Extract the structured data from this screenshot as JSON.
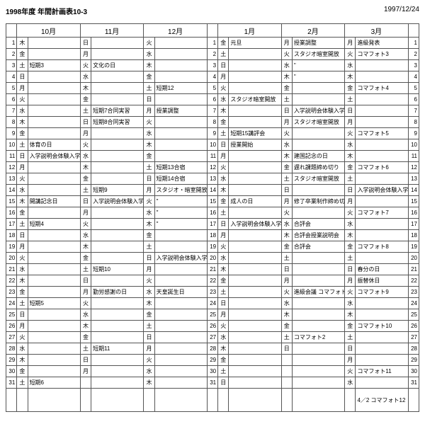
{
  "header": {
    "title": "1998年度 年間計画表10-3",
    "print_date": "1997/12/24"
  },
  "months": [
    "10月",
    "11月",
    "12月",
    "1月",
    "2月",
    "3月"
  ],
  "days": {
    "10": [
      "木",
      "金",
      "土",
      "日",
      "月",
      "火",
      "水",
      "木",
      "金",
      "土",
      "日",
      "月",
      "火",
      "水",
      "木",
      "金",
      "土",
      "日",
      "月",
      "火",
      "水",
      "木",
      "金",
      "土",
      "日",
      "月",
      "火",
      "水",
      "木",
      "金",
      "土"
    ],
    "11": [
      "日",
      "月",
      "火",
      "水",
      "木",
      "金",
      "土",
      "日",
      "月",
      "火",
      "水",
      "木",
      "金",
      "土",
      "日",
      "月",
      "火",
      "水",
      "木",
      "金",
      "土",
      "日",
      "月",
      "火",
      "水",
      "木",
      "金",
      "土",
      "日",
      "月",
      ""
    ],
    "12": [
      "火",
      "水",
      "木",
      "金",
      "土",
      "日",
      "月",
      "火",
      "水",
      "木",
      "金",
      "土",
      "日",
      "月",
      "火",
      "水",
      "木",
      "金",
      "土",
      "日",
      "月",
      "火",
      "水",
      "木",
      "金",
      "土",
      "日",
      "月",
      "火",
      "水",
      "木"
    ],
    "1": [
      "金",
      "土",
      "日",
      "月",
      "火",
      "水",
      "木",
      "金",
      "土",
      "日",
      "月",
      "火",
      "水",
      "木",
      "金",
      "土",
      "日",
      "月",
      "火",
      "水",
      "木",
      "金",
      "土",
      "日",
      "月",
      "火",
      "水",
      "木",
      "金",
      "土",
      "日"
    ],
    "2": [
      "月",
      "火",
      "水",
      "木",
      "金",
      "土",
      "日",
      "月",
      "火",
      "水",
      "木",
      "金",
      "土",
      "日",
      "月",
      "火",
      "水",
      "木",
      "金",
      "土",
      "日",
      "月",
      "火",
      "水",
      "木",
      "金",
      "土",
      "日",
      "",
      "",
      ""
    ],
    "3": [
      "月",
      "火",
      "水",
      "木",
      "金",
      "土",
      "日",
      "月",
      "火",
      "水",
      "木",
      "金",
      "土",
      "日",
      "月",
      "火",
      "水",
      "木",
      "金",
      "土",
      "日",
      "月",
      "火",
      "水",
      "木",
      "金",
      "土",
      "日",
      "月",
      "火",
      "水"
    ]
  },
  "events": {
    "10": {
      "3": "短期3",
      "10": "体育の日",
      "11": "入学説明会体験入学",
      "15": "開講記念日",
      "17": "短期4",
      "24": "短期5",
      "31": "短期6"
    },
    "11": {
      "3": "文化の日",
      "7": "短期7合同実習",
      "8": "短期8合同実習",
      "14": "短期9",
      "15": "入学説明会体験入学",
      "21": "短期10",
      "23": "勤労感謝の日",
      "28": "短期11"
    },
    "12": {
      "5": "短期12",
      "7": "授業調整",
      "12": "短期13合宿",
      "13": "短期14合宿",
      "14": "スタジオ・暗室開放",
      "15": "\"",
      "16": "\"",
      "17": "\"",
      "20": "入学説明会体験入学",
      "23": "天皇誕生日"
    },
    "1": {
      "1": "元旦",
      "6": "スタジオ暗室開放",
      "9": "短期15講評会",
      "10": "授業開始",
      "15": "成人の日",
      "17": "入学説明会体験入学"
    },
    "2": {
      "1": "授業調整",
      "2": "スタジオ暗室開放",
      "3": "\"",
      "4": "\"",
      "7": "入学説明会体験入学",
      "8": "スタジオ暗室開放",
      "11": "建国記念の日",
      "12": "遅れ課題締め切り",
      "13": "スタジオ暗室開放",
      "15": "修了卒業制作締め切り",
      "17": "合評会",
      "18": "合評会授業説明会",
      "19": "合評会",
      "23": "進級会議 コマフォト1",
      "27": "コマフォト2"
    },
    "3": {
      "1": "進級発表",
      "2": "コマフォト3",
      "5": "コマフォト4",
      "9": "コマフォト5",
      "12": "コマフォト6",
      "14": "入学説明会体験入学",
      "16": "コマフォト7",
      "19": "コマフォト8",
      "21": "春分の日",
      "22": "振替休日",
      "23": "コマフォト9",
      "26": "コマフォト10",
      "30": "コマフォト11"
    }
  },
  "footer": "4／2 コマフォト12"
}
